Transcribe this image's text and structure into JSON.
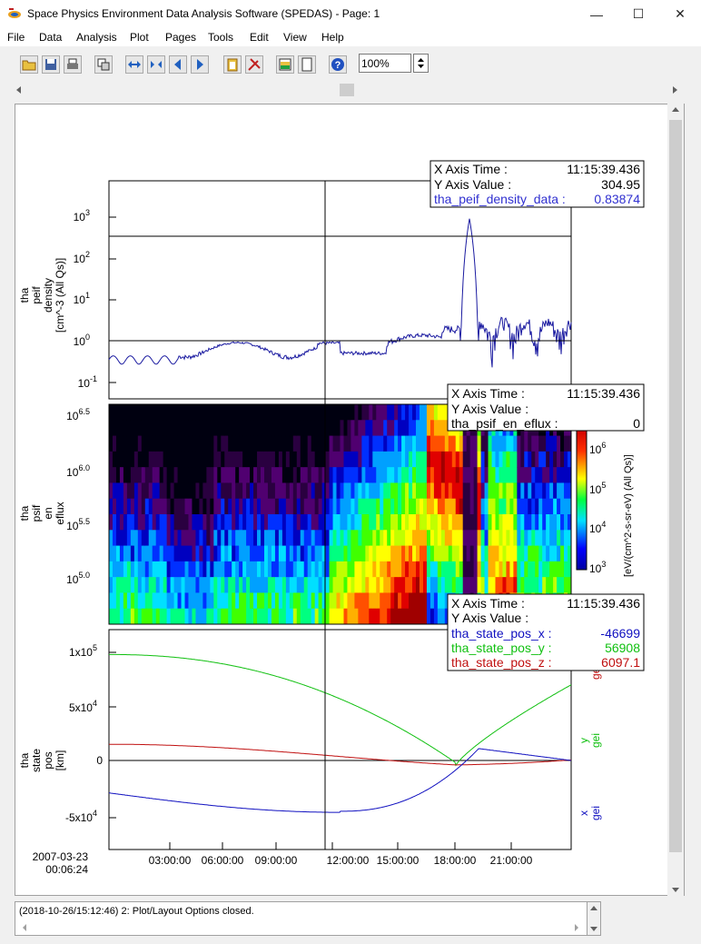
{
  "window": {
    "title": "Space Physics Environment Data Analysis Software (SPEDAS) - Page: 1",
    "minimize": "—",
    "maximize": "☐",
    "close": "✕"
  },
  "menu": [
    "File",
    "Data",
    "Analysis",
    "Plot",
    "Pages",
    "Tools",
    "Edit",
    "View",
    "Help"
  ],
  "toolbar": {
    "zoom_value": "100%",
    "icons": [
      "open-folder-icon",
      "save-icon",
      "print-icon",
      "copy-window-icon",
      "expand-both-icon",
      "compress-both-icon",
      "arrow-left-icon",
      "arrow-right-icon",
      "clipboard-icon",
      "tools-icon",
      "plot-colors-icon",
      "page-icon",
      "help-icon"
    ]
  },
  "status": {
    "message": "(2018-10-26/15:12:46) 2: Plot/Layout Options closed."
  },
  "plot": {
    "panel1": {
      "ylabel": [
        "tha",
        "peif",
        "density",
        "[cm^-3 (All Qs)]"
      ],
      "yticks": [
        "10",
        "10",
        "10",
        "10",
        "10"
      ],
      "yexp": [
        "3",
        "2",
        "1",
        "0",
        "-1"
      ],
      "legend": {
        "xtime_label": "X Axis Time :",
        "xtime_value": "11:15:39.436",
        "yval_label": "Y Axis Value :",
        "yval_value": "304.95",
        "var_label": "tha_peif_density_data :",
        "var_value": "0.83874",
        "var_color": "#3030d0"
      }
    },
    "panel2": {
      "ylabel": [
        "tha",
        "psif",
        "en",
        "eflux"
      ],
      "yticks": [
        "10",
        "10",
        "10",
        "10"
      ],
      "yexp": [
        "6.5",
        "6.0",
        "5.5",
        "5.0"
      ],
      "zlabel": "[eV/(cm^2-s-sr-eV) (All Qs)]",
      "zticks": [
        "10",
        "10",
        "10",
        "10"
      ],
      "zexp": [
        "6",
        "5",
        "4",
        "3"
      ],
      "legend": {
        "xtime_label": "X Axis Time :",
        "xtime_value": "11:15:39.436",
        "yval_label": "Y Axis Value :",
        "yval_value": "",
        "var_label": "tha_psif_en_eflux :",
        "var_value": "0"
      }
    },
    "panel3": {
      "ylabel": [
        "tha",
        "state",
        "pos",
        "[km]"
      ],
      "yticks": [
        "1x10",
        "5x10",
        "0",
        "-5x10"
      ],
      "yexp": [
        "5",
        "4",
        "",
        "4"
      ],
      "right_labels": {
        "x": [
          "x",
          "gei"
        ],
        "y": [
          "y",
          "gei"
        ],
        "z": [
          "gei"
        ]
      },
      "colors": {
        "x": "#1010c0",
        "y": "#10c010",
        "z": "#c01010"
      },
      "legend": {
        "xtime_label": "X Axis Time :",
        "xtime_value": "11:15:39.436",
        "yval_label": "Y Axis Value :",
        "yval_value": "",
        "x_label": "tha_state_pos_x :",
        "x_value": "-46699",
        "y_label": "tha_state_pos_y :",
        "y_value": "56908",
        "z_label": "tha_state_pos_z :",
        "z_value": "6097.1"
      }
    },
    "xaxis": {
      "ticks": [
        "03:00:00",
        "06:00:00",
        "09:00:00",
        "12:00:00",
        "15:00:00",
        "18:00:00",
        "21:00:00"
      ],
      "date": "2007-03-23",
      "start": "00:06:24"
    }
  }
}
